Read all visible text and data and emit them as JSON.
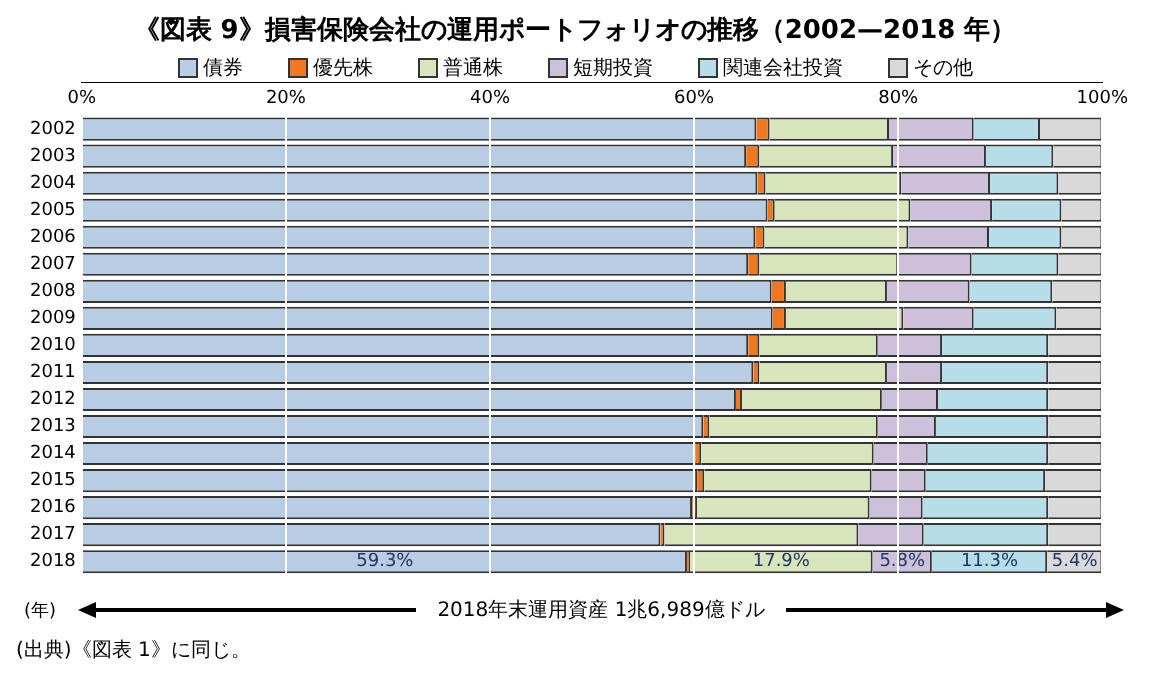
{
  "chart_data": {
    "type": "bar",
    "orientation": "horizontal",
    "stacked": true,
    "title": "《図表 9》損害保険会社の運用ポートフォリオの推移（2002—2018 年）",
    "ylabel": "(年)",
    "categories": [
      "2002",
      "2003",
      "2004",
      "2005",
      "2006",
      "2007",
      "2008",
      "2009",
      "2010",
      "2011",
      "2012",
      "2013",
      "2014",
      "2015",
      "2016",
      "2017",
      "2018"
    ],
    "series": [
      {
        "name": "債券",
        "color": "#b8cce4",
        "values": [
          66.1,
          65.1,
          66.2,
          67.2,
          66.0,
          65.3,
          67.6,
          67.7,
          65.3,
          65.8,
          64.1,
          60.9,
          60.1,
          60.3,
          59.8,
          56.7,
          59.3
        ],
        "value_labels": [
          null,
          null,
          null,
          null,
          null,
          null,
          null,
          null,
          null,
          null,
          null,
          null,
          null,
          null,
          null,
          null,
          "59.3%"
        ]
      },
      {
        "name": "優先株",
        "color": "#f07820",
        "values": [
          1.3,
          1.3,
          0.8,
          0.7,
          0.9,
          1.1,
          1.4,
          1.3,
          1.1,
          0.6,
          0.6,
          0.6,
          0.6,
          0.7,
          0.5,
          0.4,
          0.3
        ]
      },
      {
        "name": "普通株",
        "color": "#d8e4bc",
        "values": [
          11.7,
          13.1,
          13.3,
          13.3,
          14.1,
          13.6,
          9.9,
          11.5,
          11.6,
          12.5,
          13.7,
          16.5,
          16.9,
          16.4,
          16.9,
          19.0,
          17.9
        ],
        "value_labels": [
          null,
          null,
          null,
          null,
          null,
          null,
          null,
          null,
          null,
          null,
          null,
          null,
          null,
          null,
          null,
          null,
          "17.9%"
        ]
      },
      {
        "name": "短期投資",
        "color": "#ccc0da",
        "values": [
          8.3,
          9.1,
          8.7,
          8.0,
          7.9,
          7.2,
          8.1,
          6.9,
          6.3,
          5.4,
          5.5,
          5.7,
          5.3,
          5.3,
          5.2,
          6.4,
          5.8
        ],
        "value_labels": [
          null,
          null,
          null,
          null,
          null,
          null,
          null,
          null,
          null,
          null,
          null,
          null,
          null,
          null,
          null,
          null,
          "5.8%"
        ]
      },
      {
        "name": "関連会社投資",
        "color": "#b7dee8",
        "values": [
          6.5,
          6.6,
          6.7,
          6.8,
          7.1,
          8.5,
          8.1,
          8.1,
          10.4,
          10.4,
          10.8,
          11.0,
          11.8,
          11.7,
          12.3,
          12.2,
          11.3
        ],
        "value_labels": [
          null,
          null,
          null,
          null,
          null,
          null,
          null,
          null,
          null,
          null,
          null,
          null,
          null,
          null,
          null,
          null,
          "11.3%"
        ]
      },
      {
        "name": "その他",
        "color": "#d9d9d9",
        "values": [
          6.1,
          4.8,
          4.3,
          4.0,
          4.0,
          4.3,
          4.9,
          4.5,
          5.3,
          5.3,
          5.3,
          5.3,
          5.3,
          5.6,
          5.3,
          5.3,
          5.4
        ],
        "value_labels": [
          null,
          null,
          null,
          null,
          null,
          null,
          null,
          null,
          null,
          null,
          null,
          null,
          null,
          null,
          null,
          null,
          "5.4%"
        ]
      }
    ],
    "xlim": [
      0,
      100
    ],
    "xticks": [
      {
        "value": 0,
        "label": "0%"
      },
      {
        "value": 20,
        "label": "20%"
      },
      {
        "value": 40,
        "label": "40%"
      },
      {
        "value": 60,
        "label": "60%"
      },
      {
        "value": 80,
        "label": "80%"
      },
      {
        "value": 100,
        "label": "100%"
      }
    ],
    "grid": "x",
    "legend": "top",
    "annotations": [
      "2018年末運用資産  1兆6,989億ドル",
      "(出典)《図表 1》に同じ。"
    ]
  }
}
